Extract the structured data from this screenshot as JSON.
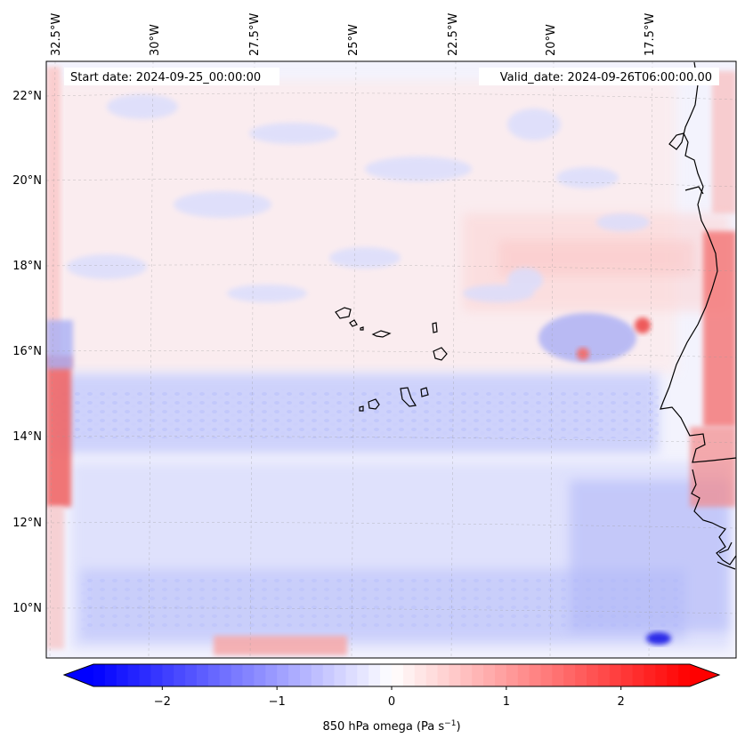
{
  "header": {
    "start_date": "Start date: 2024-09-25_00:00:00",
    "valid_date": "Valid_date: 2024-09-26T06:00:00.00"
  },
  "map": {
    "lon_labels": [
      "32.5°W",
      "30°W",
      "27.5°W",
      "25°W",
      "22.5°W",
      "20°W",
      "17.5°W"
    ],
    "lat_labels": [
      "22°N",
      "20°N",
      "18°N",
      "16°N",
      "14°N",
      "12°N",
      "10°N"
    ],
    "field": "850 hPa omega",
    "gridlines": "dashed"
  },
  "colorbar": {
    "label_text": "850 hPa omega (Pa s",
    "label_sup": "−1",
    "label_close": ")",
    "ticks": [
      "−2",
      "−1",
      "0",
      "1",
      "2"
    ],
    "range": [
      -2.6,
      2.6
    ],
    "extend": "both",
    "colormap": "bwr",
    "colors": {
      "low": "#0000ff",
      "mid": "#ffffff",
      "high": "#ff0000"
    }
  }
}
